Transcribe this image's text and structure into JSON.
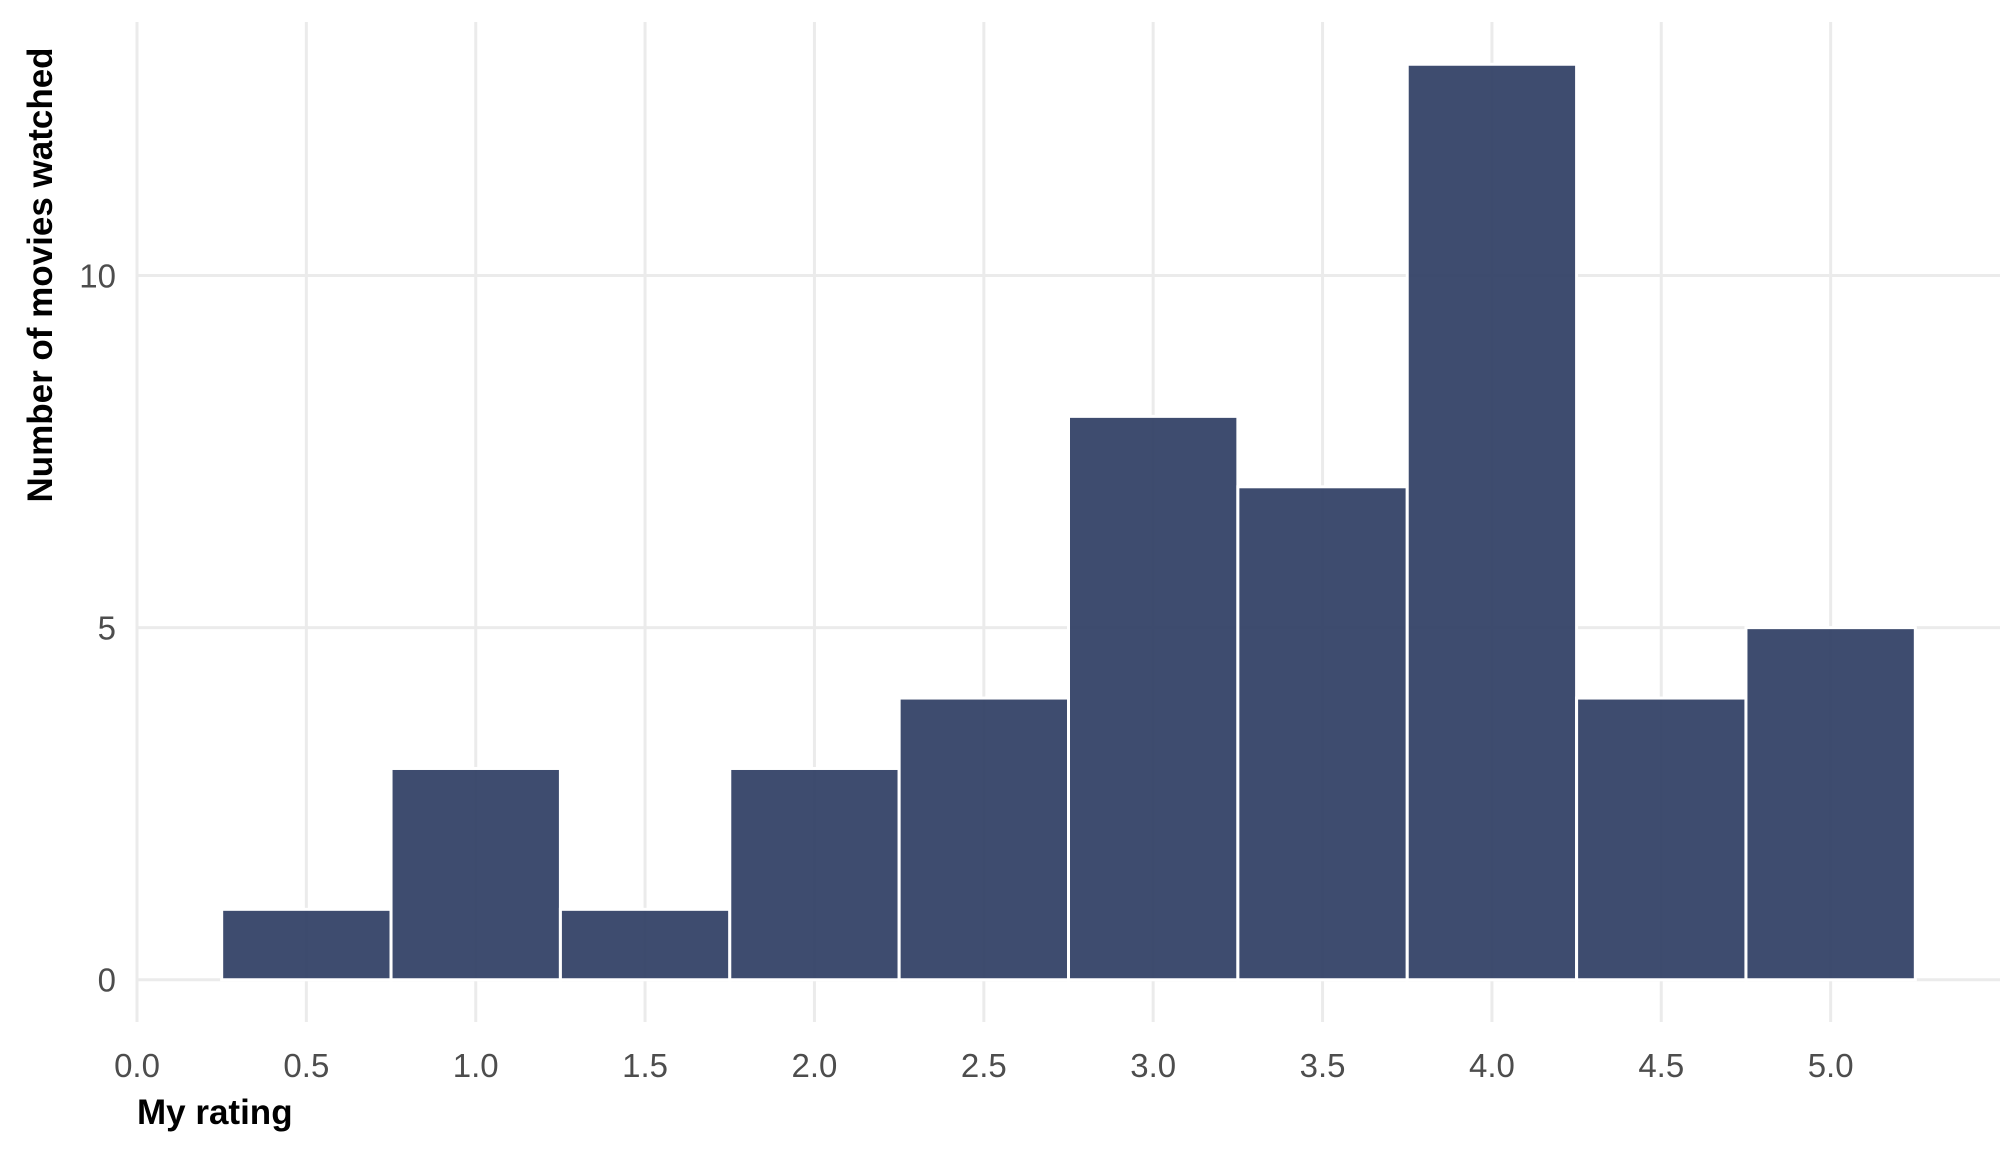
{
  "chart_data": {
    "type": "bar",
    "title": "",
    "xlabel": "My rating",
    "ylabel": "Number of movies watched",
    "bin_width": 0.5,
    "x": [
      0.5,
      1.0,
      1.5,
      2.0,
      2.5,
      3.0,
      3.5,
      4.0,
      4.5,
      5.0
    ],
    "values": [
      1,
      3,
      1,
      3,
      4,
      8,
      7,
      13,
      4,
      5
    ],
    "xlim": [
      0,
      5.5
    ],
    "ylim": [
      -0.6,
      13.6
    ],
    "x_ticks": [
      0.0,
      0.5,
      1.0,
      1.5,
      2.0,
      2.5,
      3.0,
      3.5,
      4.0,
      4.5,
      5.0
    ],
    "x_tick_labels": [
      "0.0",
      "0.5",
      "1.0",
      "1.5",
      "2.0",
      "2.5",
      "3.0",
      "3.5",
      "4.0",
      "4.5",
      "5.0"
    ],
    "y_ticks": [
      0,
      5,
      10
    ],
    "y_tick_labels": [
      "0",
      "5",
      "10"
    ],
    "grid": true,
    "legend": "none",
    "bar_color": "#2e3d63",
    "grid_color": "#ebebeb"
  }
}
